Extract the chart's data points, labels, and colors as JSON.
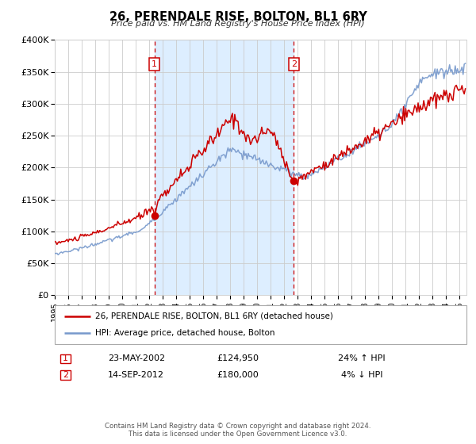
{
  "title": "26, PERENDALE RISE, BOLTON, BL1 6RY",
  "subtitle": "Price paid vs. HM Land Registry's House Price Index (HPI)",
  "legend_label_red": "26, PERENDALE RISE, BOLTON, BL1 6RY (detached house)",
  "legend_label_blue": "HPI: Average price, detached house, Bolton",
  "annotation1_label": "1",
  "annotation1_date": "23-MAY-2002",
  "annotation1_price": "£124,950",
  "annotation1_hpi": "24% ↑ HPI",
  "annotation2_label": "2",
  "annotation2_date": "14-SEP-2012",
  "annotation2_price": "£180,000",
  "annotation2_hpi": "4% ↓ HPI",
  "footer1": "Contains HM Land Registry data © Crown copyright and database right 2024.",
  "footer2": "This data is licensed under the Open Government Licence v3.0.",
  "ylim": [
    0,
    400000
  ],
  "yticks": [
    0,
    50000,
    100000,
    150000,
    200000,
    250000,
    300000,
    350000,
    400000
  ],
  "ytick_labels": [
    "£0",
    "£50K",
    "£100K",
    "£150K",
    "£200K",
    "£250K",
    "£300K",
    "£350K",
    "£400K"
  ],
  "xmin": 1995.0,
  "xmax": 2025.5,
  "vline1_x": 2002.388,
  "vline2_x": 2012.706,
  "sale1_x": 2002.388,
  "sale1_y": 124950,
  "sale2_x": 2012.706,
  "sale2_y": 180000,
  "red_color": "#cc0000",
  "blue_color": "#7799cc",
  "shading_color": "#ddeeff",
  "background_color": "#ffffff",
  "grid_color": "#cccccc"
}
